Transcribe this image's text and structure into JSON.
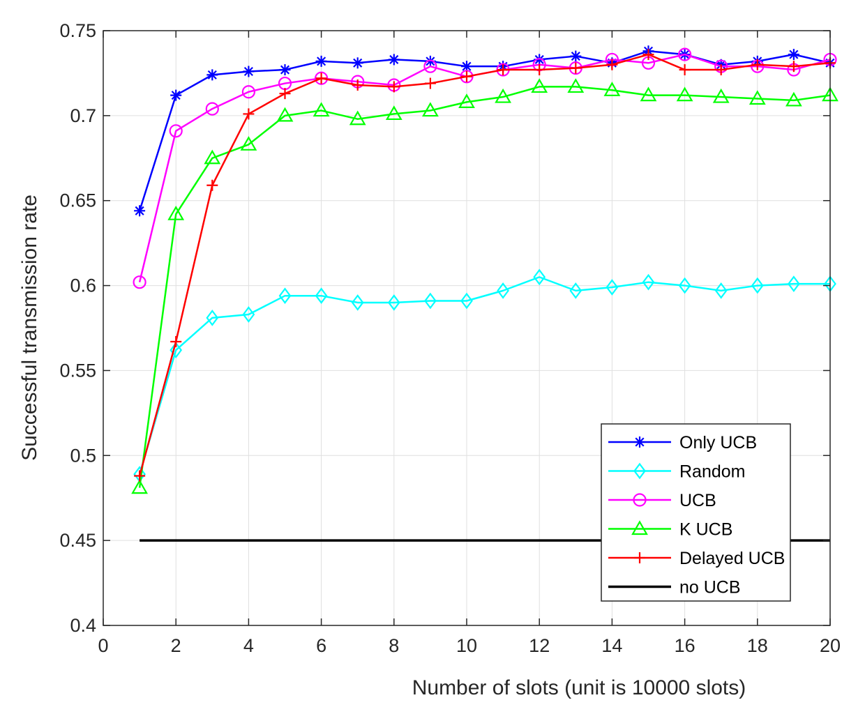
{
  "chart_data": {
    "type": "line",
    "title": "",
    "xlabel": "Number of slots (unit is 10000 slots)",
    "ylabel": "Successful transmission rate",
    "xlim": [
      0,
      20
    ],
    "ylim": [
      0.4,
      0.75
    ],
    "xticks": [
      "0",
      "2",
      "4",
      "6",
      "8",
      "10",
      "12",
      "14",
      "16",
      "18",
      "20"
    ],
    "yticks": [
      "0.4",
      "0.45",
      "0.5",
      "0.55",
      "0.6",
      "0.65",
      "0.7",
      "0.75"
    ],
    "grid": true,
    "legend_position": "bottom-right",
    "x": [
      1,
      2,
      3,
      4,
      5,
      6,
      7,
      8,
      9,
      10,
      11,
      12,
      13,
      14,
      15,
      16,
      17,
      18,
      19,
      20
    ],
    "series": [
      {
        "name": "Only UCB",
        "color": "#0000ff",
        "marker": "asterisk",
        "values": [
          0.644,
          0.712,
          0.724,
          0.726,
          0.727,
          0.732,
          0.731,
          0.733,
          0.732,
          0.729,
          0.729,
          0.733,
          0.735,
          0.731,
          0.738,
          0.736,
          0.73,
          0.732,
          0.736,
          0.731
        ]
      },
      {
        "name": "Random",
        "color": "#00ffff",
        "marker": "diamond",
        "values": [
          0.489,
          0.562,
          0.581,
          0.583,
          0.594,
          0.594,
          0.59,
          0.59,
          0.591,
          0.591,
          0.597,
          0.605,
          0.597,
          0.599,
          0.602,
          0.6,
          0.597,
          0.6,
          0.601,
          0.601
        ]
      },
      {
        "name": "UCB",
        "color": "#ff00ff",
        "marker": "circle",
        "values": [
          0.602,
          0.691,
          0.704,
          0.714,
          0.719,
          0.722,
          0.72,
          0.718,
          0.729,
          0.723,
          0.727,
          0.73,
          0.728,
          0.733,
          0.731,
          0.736,
          0.729,
          0.729,
          0.727,
          0.733
        ]
      },
      {
        "name": "K UCB",
        "color": "#00ff00",
        "marker": "triangle",
        "values": [
          0.481,
          0.642,
          0.675,
          0.683,
          0.7,
          0.703,
          0.698,
          0.701,
          0.703,
          0.708,
          0.711,
          0.717,
          0.717,
          0.715,
          0.712,
          0.712,
          0.711,
          0.71,
          0.709,
          0.712
        ]
      },
      {
        "name": "Delayed UCB",
        "color": "#ff0000",
        "marker": "plus",
        "values": [
          0.488,
          0.567,
          0.659,
          0.701,
          0.713,
          0.722,
          0.718,
          0.717,
          0.719,
          0.723,
          0.727,
          0.727,
          0.728,
          0.73,
          0.736,
          0.727,
          0.727,
          0.73,
          0.729,
          0.731
        ]
      },
      {
        "name": "no UCB",
        "color": "#000000",
        "marker": "none",
        "values": [
          0.45,
          0.45,
          0.45,
          0.45,
          0.45,
          0.45,
          0.45,
          0.45,
          0.45,
          0.45,
          0.45,
          0.45,
          0.45,
          0.45,
          0.45,
          0.45,
          0.45,
          0.45,
          0.45,
          0.45
        ]
      }
    ]
  }
}
